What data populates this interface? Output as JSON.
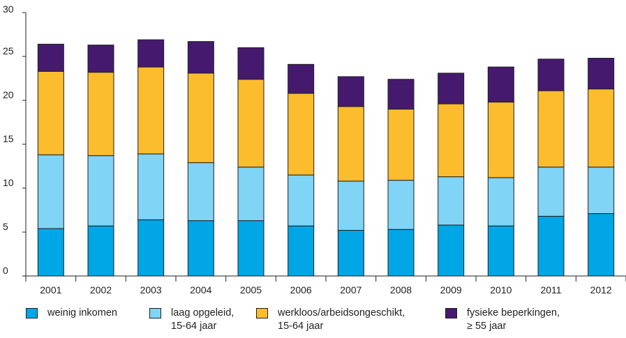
{
  "chart_data": {
    "type": "bar",
    "stacked": true,
    "categories": [
      "2001",
      "2002",
      "2003",
      "2004",
      "2005",
      "2006",
      "2007",
      "2008",
      "2009",
      "2010",
      "2011",
      "2012"
    ],
    "series": [
      {
        "name": "weinig inkomen",
        "color": "#00a6e6",
        "values": [
          5.4,
          5.7,
          6.4,
          6.3,
          6.3,
          5.7,
          5.2,
          5.3,
          5.8,
          5.7,
          6.8,
          7.1
        ]
      },
      {
        "name": "laag opgeleid, 15-64 jaar",
        "color": "#80d4f5",
        "values": [
          8.4,
          8.0,
          7.5,
          6.6,
          6.1,
          5.8,
          5.6,
          5.6,
          5.5,
          5.5,
          5.6,
          5.3
        ]
      },
      {
        "name": "werkloos/arbeidsongeschikt, 15-64 jaar",
        "color": "#fbbc2e",
        "values": [
          9.5,
          9.5,
          9.9,
          10.2,
          10.0,
          9.3,
          8.5,
          8.1,
          8.3,
          8.6,
          8.7,
          8.9
        ]
      },
      {
        "name": "fysieke beperkingen, ≥ 55 jaar",
        "color": "#451a6e",
        "values": [
          3.1,
          3.1,
          3.1,
          3.6,
          3.6,
          3.3,
          3.4,
          3.4,
          3.5,
          4.0,
          3.6,
          3.5
        ]
      }
    ],
    "yticks": [
      "0",
      "5",
      "10",
      "15",
      "20",
      "25",
      "30"
    ],
    "ylim": [
      0,
      30
    ],
    "legend_position": "bottom",
    "grid": false
  },
  "legend": [
    {
      "line1": "weinig inkomen",
      "line2": ""
    },
    {
      "line1": "laag opgeleid,",
      "line2": "15-64 jaar"
    },
    {
      "line1": "werkloos/arbeidsongeschikt,",
      "line2": "15-64 jaar"
    },
    {
      "line1": "fysieke beperkingen,",
      "line2": "≥ 55 jaar"
    }
  ]
}
